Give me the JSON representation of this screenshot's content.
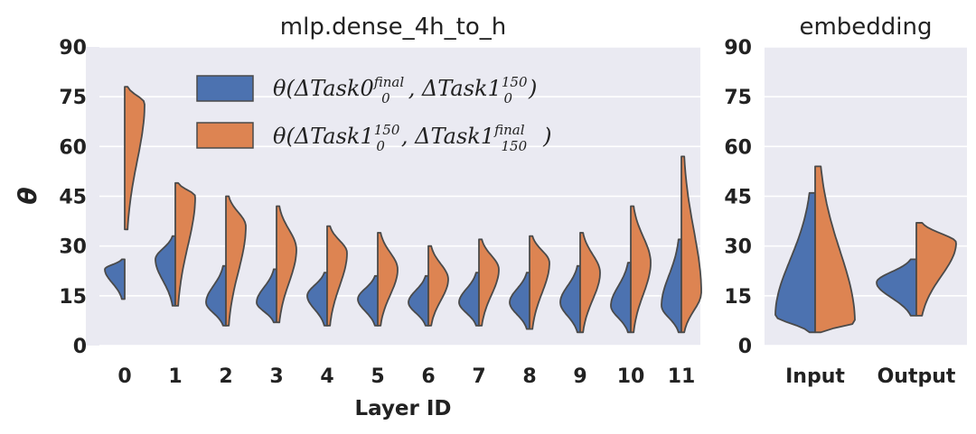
{
  "chart_data": [
    {
      "type": "violin",
      "title": "mlp.dense_4h_to_h",
      "xlabel": "Layer ID",
      "ylabel": "θ",
      "ylim": [
        0,
        90
      ],
      "yticks": [
        0,
        15,
        30,
        45,
        60,
        75,
        90
      ],
      "categories": [
        "0",
        "1",
        "2",
        "3",
        "4",
        "5",
        "6",
        "7",
        "8",
        "9",
        "10",
        "11"
      ],
      "grid": true,
      "legend_position": "top-center",
      "series": [
        {
          "name": "θ(ΔTask0_0^final, ΔTask1_0^150)",
          "color": "#4c72b0",
          "side": "left",
          "ranges": [
            [
              14,
              26
            ],
            [
              12,
              33
            ],
            [
              6,
              24
            ],
            [
              7,
              23
            ],
            [
              6,
              22
            ],
            [
              6,
              21
            ],
            [
              6,
              21
            ],
            [
              6,
              22
            ],
            [
              5,
              22
            ],
            [
              4,
              24
            ],
            [
              4,
              25
            ],
            [
              4,
              32
            ]
          ],
          "modes": [
            23,
            26,
            13,
            13,
            15,
            14,
            13,
            13,
            13,
            13,
            12,
            12
          ]
        },
        {
          "name": "θ(ΔTask1_0^150, ΔTask1_150^final)",
          "color": "#dd8452",
          "side": "right",
          "ranges": [
            [
              35,
              78
            ],
            [
              12,
              49
            ],
            [
              6,
              45
            ],
            [
              7,
              42
            ],
            [
              6,
              36
            ],
            [
              6,
              34
            ],
            [
              6,
              30
            ],
            [
              6,
              32
            ],
            [
              5,
              33
            ],
            [
              4,
              34
            ],
            [
              4,
              42
            ],
            [
              4,
              57
            ]
          ],
          "modes": [
            73,
            45,
            36,
            29,
            28,
            23,
            20,
            23,
            25,
            22,
            25,
            16
          ]
        }
      ]
    },
    {
      "type": "violin",
      "title": "embedding",
      "ylim": [
        0,
        90
      ],
      "yticks": [
        0,
        15,
        30,
        45,
        60,
        75,
        90
      ],
      "categories": [
        "Input",
        "Output"
      ],
      "grid": true,
      "series": [
        {
          "name": "θ(ΔTask0_0^final, ΔTask1_0^150)",
          "color": "#4c72b0",
          "side": "left",
          "ranges": [
            [
              4,
              46
            ],
            [
              9,
              26
            ]
          ],
          "modes": [
            9,
            19
          ]
        },
        {
          "name": "θ(ΔTask1_0^150, ΔTask1_150^final)",
          "color": "#dd8452",
          "side": "right",
          "ranges": [
            [
              4,
              54
            ],
            [
              9,
              37
            ]
          ],
          "modes": [
            7,
            31
          ]
        }
      ]
    }
  ],
  "legend": {
    "entries": [
      {
        "prefix": "θ(ΔTask0",
        "sup1": "final",
        "sub1": "0",
        "mid": ", ΔTask1",
        "sup2": "150",
        "sub2": "0",
        "suffix": ")"
      },
      {
        "prefix": "θ(ΔTask1",
        "sup1": "150",
        "sub1": "0",
        "mid": ", ΔTask1",
        "sup2": "final",
        "sub2": "150",
        "suffix": ")"
      }
    ]
  }
}
